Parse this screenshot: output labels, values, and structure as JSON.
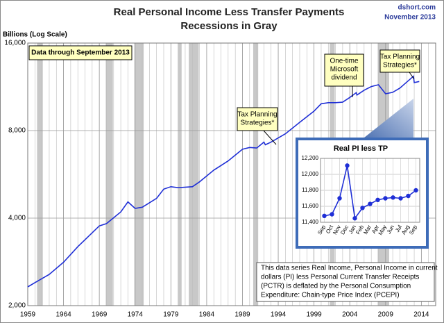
{
  "chart_data": [
    {
      "type": "line",
      "title": "Real Personal Income Less Transfer Payments",
      "subtitle": "Recessions in Gray",
      "source": "dshort.com",
      "date": "November 2013",
      "ylabel": "Billions (Log Scale)",
      "log_scale": true,
      "grid": true,
      "color": "#1f2fd6",
      "recession_color": "#c8c8c8",
      "xlim": [
        1959,
        2016
      ],
      "xticks": [
        1959,
        1964,
        1969,
        1974,
        1979,
        1984,
        1989,
        1994,
        1999,
        2004,
        2009,
        2014
      ],
      "ylim": [
        2000,
        16000
      ],
      "yticks": [
        {
          "value": 2000,
          "label": "2,000"
        },
        {
          "value": 4000,
          "label": "4,000"
        },
        {
          "value": 8000,
          "label": "8,000"
        },
        {
          "value": 16000,
          "label": "16,000"
        }
      ],
      "recessions": [
        [
          1960.3,
          1961.1
        ],
        [
          1969.9,
          1970.9
        ],
        [
          1973.9,
          1975.2
        ],
        [
          1980.0,
          1980.5
        ],
        [
          1981.5,
          1982.9
        ],
        [
          1990.5,
          1991.2
        ],
        [
          2001.2,
          2001.9
        ],
        [
          2007.9,
          2009.5
        ]
      ],
      "x": [
        1959,
        1960,
        1962,
        1964,
        1966,
        1968,
        1969,
        1970,
        1972,
        1973,
        1974,
        1975,
        1977,
        1978,
        1979,
        1980,
        1982,
        1983,
        1985,
        1987,
        1989,
        1990,
        1991,
        1992,
        1992.2,
        1993,
        1995,
        1997,
        1999,
        2000,
        2001,
        2002,
        2003,
        2004,
        2004.9,
        2005,
        2006,
        2007,
        2008,
        2009,
        2010,
        2011,
        2012,
        2012.9,
        2013,
        2013.7
      ],
      "values": [
        2320,
        2400,
        2560,
        2820,
        3190,
        3560,
        3760,
        3830,
        4200,
        4550,
        4320,
        4360,
        4680,
        5030,
        5130,
        5090,
        5130,
        5330,
        5850,
        6290,
        6900,
        7000,
        6970,
        7300,
        7150,
        7300,
        7800,
        8540,
        9330,
        9890,
        9980,
        9980,
        10020,
        10400,
        10800,
        10600,
        11010,
        11340,
        11500,
        10710,
        10830,
        11200,
        11770,
        12300,
        11700,
        11800
      ],
      "annotations": [
        {
          "lines": [
            "Data through September 2013"
          ]
        },
        {
          "lines": [
            "One-time",
            "Microsoft",
            "dividend"
          ]
        },
        {
          "lines": [
            "Tax Planning",
            "Strategies*"
          ]
        },
        {
          "lines": [
            "Tax Planning",
            "Strategies*"
          ]
        }
      ],
      "note": [
        "This data series  Real Income, Personal Income in current",
        "dollars  (PI) less Personal Current Transfer Receipts",
        "(PCTR) is deflated by the Personal Consumption",
        "Expenditure: Chain-type Price Index (PCEPI)"
      ]
    },
    {
      "type": "line",
      "title": "Real PI less TP",
      "color": "#1f2fd6",
      "categories": [
        "Sep",
        "Oct",
        "Nov",
        "Dec",
        "Jan",
        "Feb",
        "Mar",
        "Apr",
        "May",
        "Jun",
        "Jul",
        "Aug",
        "Sep"
      ],
      "values": [
        11480,
        11500,
        11700,
        12110,
        11450,
        11580,
        11630,
        11680,
        11700,
        11710,
        11700,
        11730,
        11800
      ],
      "ylim": [
        11400,
        12200
      ],
      "yticks": [
        {
          "value": 11400,
          "label": "11,400"
        },
        {
          "value": 11600,
          "label": "11,600"
        },
        {
          "value": 11800,
          "label": "11,800"
        },
        {
          "value": 12000,
          "label": "12,000"
        },
        {
          "value": 12200,
          "label": "12,200"
        }
      ],
      "grid": true
    }
  ]
}
